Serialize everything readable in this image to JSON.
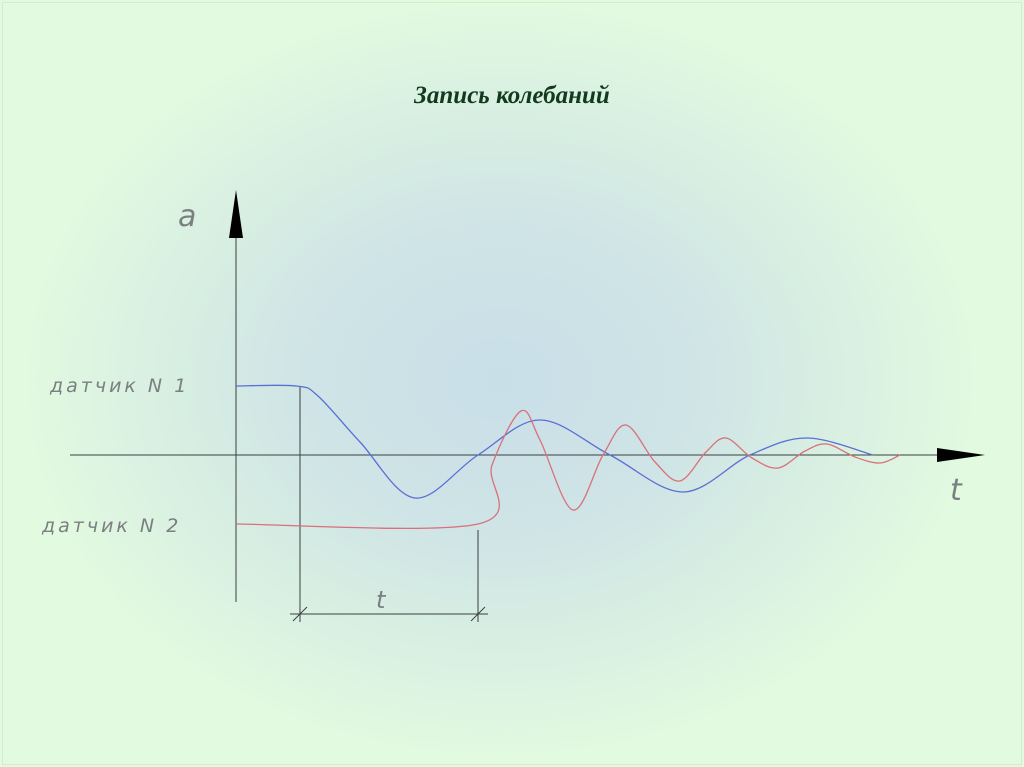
{
  "title": "Запись колебаний",
  "diagram": {
    "y_axis_label": "a",
    "x_axis_label": "t",
    "sensor1_label": "датчик N 1",
    "sensor2_label": "датчик N 2",
    "delay_label": "t",
    "colors": {
      "sensor1": "#5a6fd6",
      "sensor2": "#d9707a",
      "axes": "#3a4040",
      "title": "#123a1e"
    }
  }
}
